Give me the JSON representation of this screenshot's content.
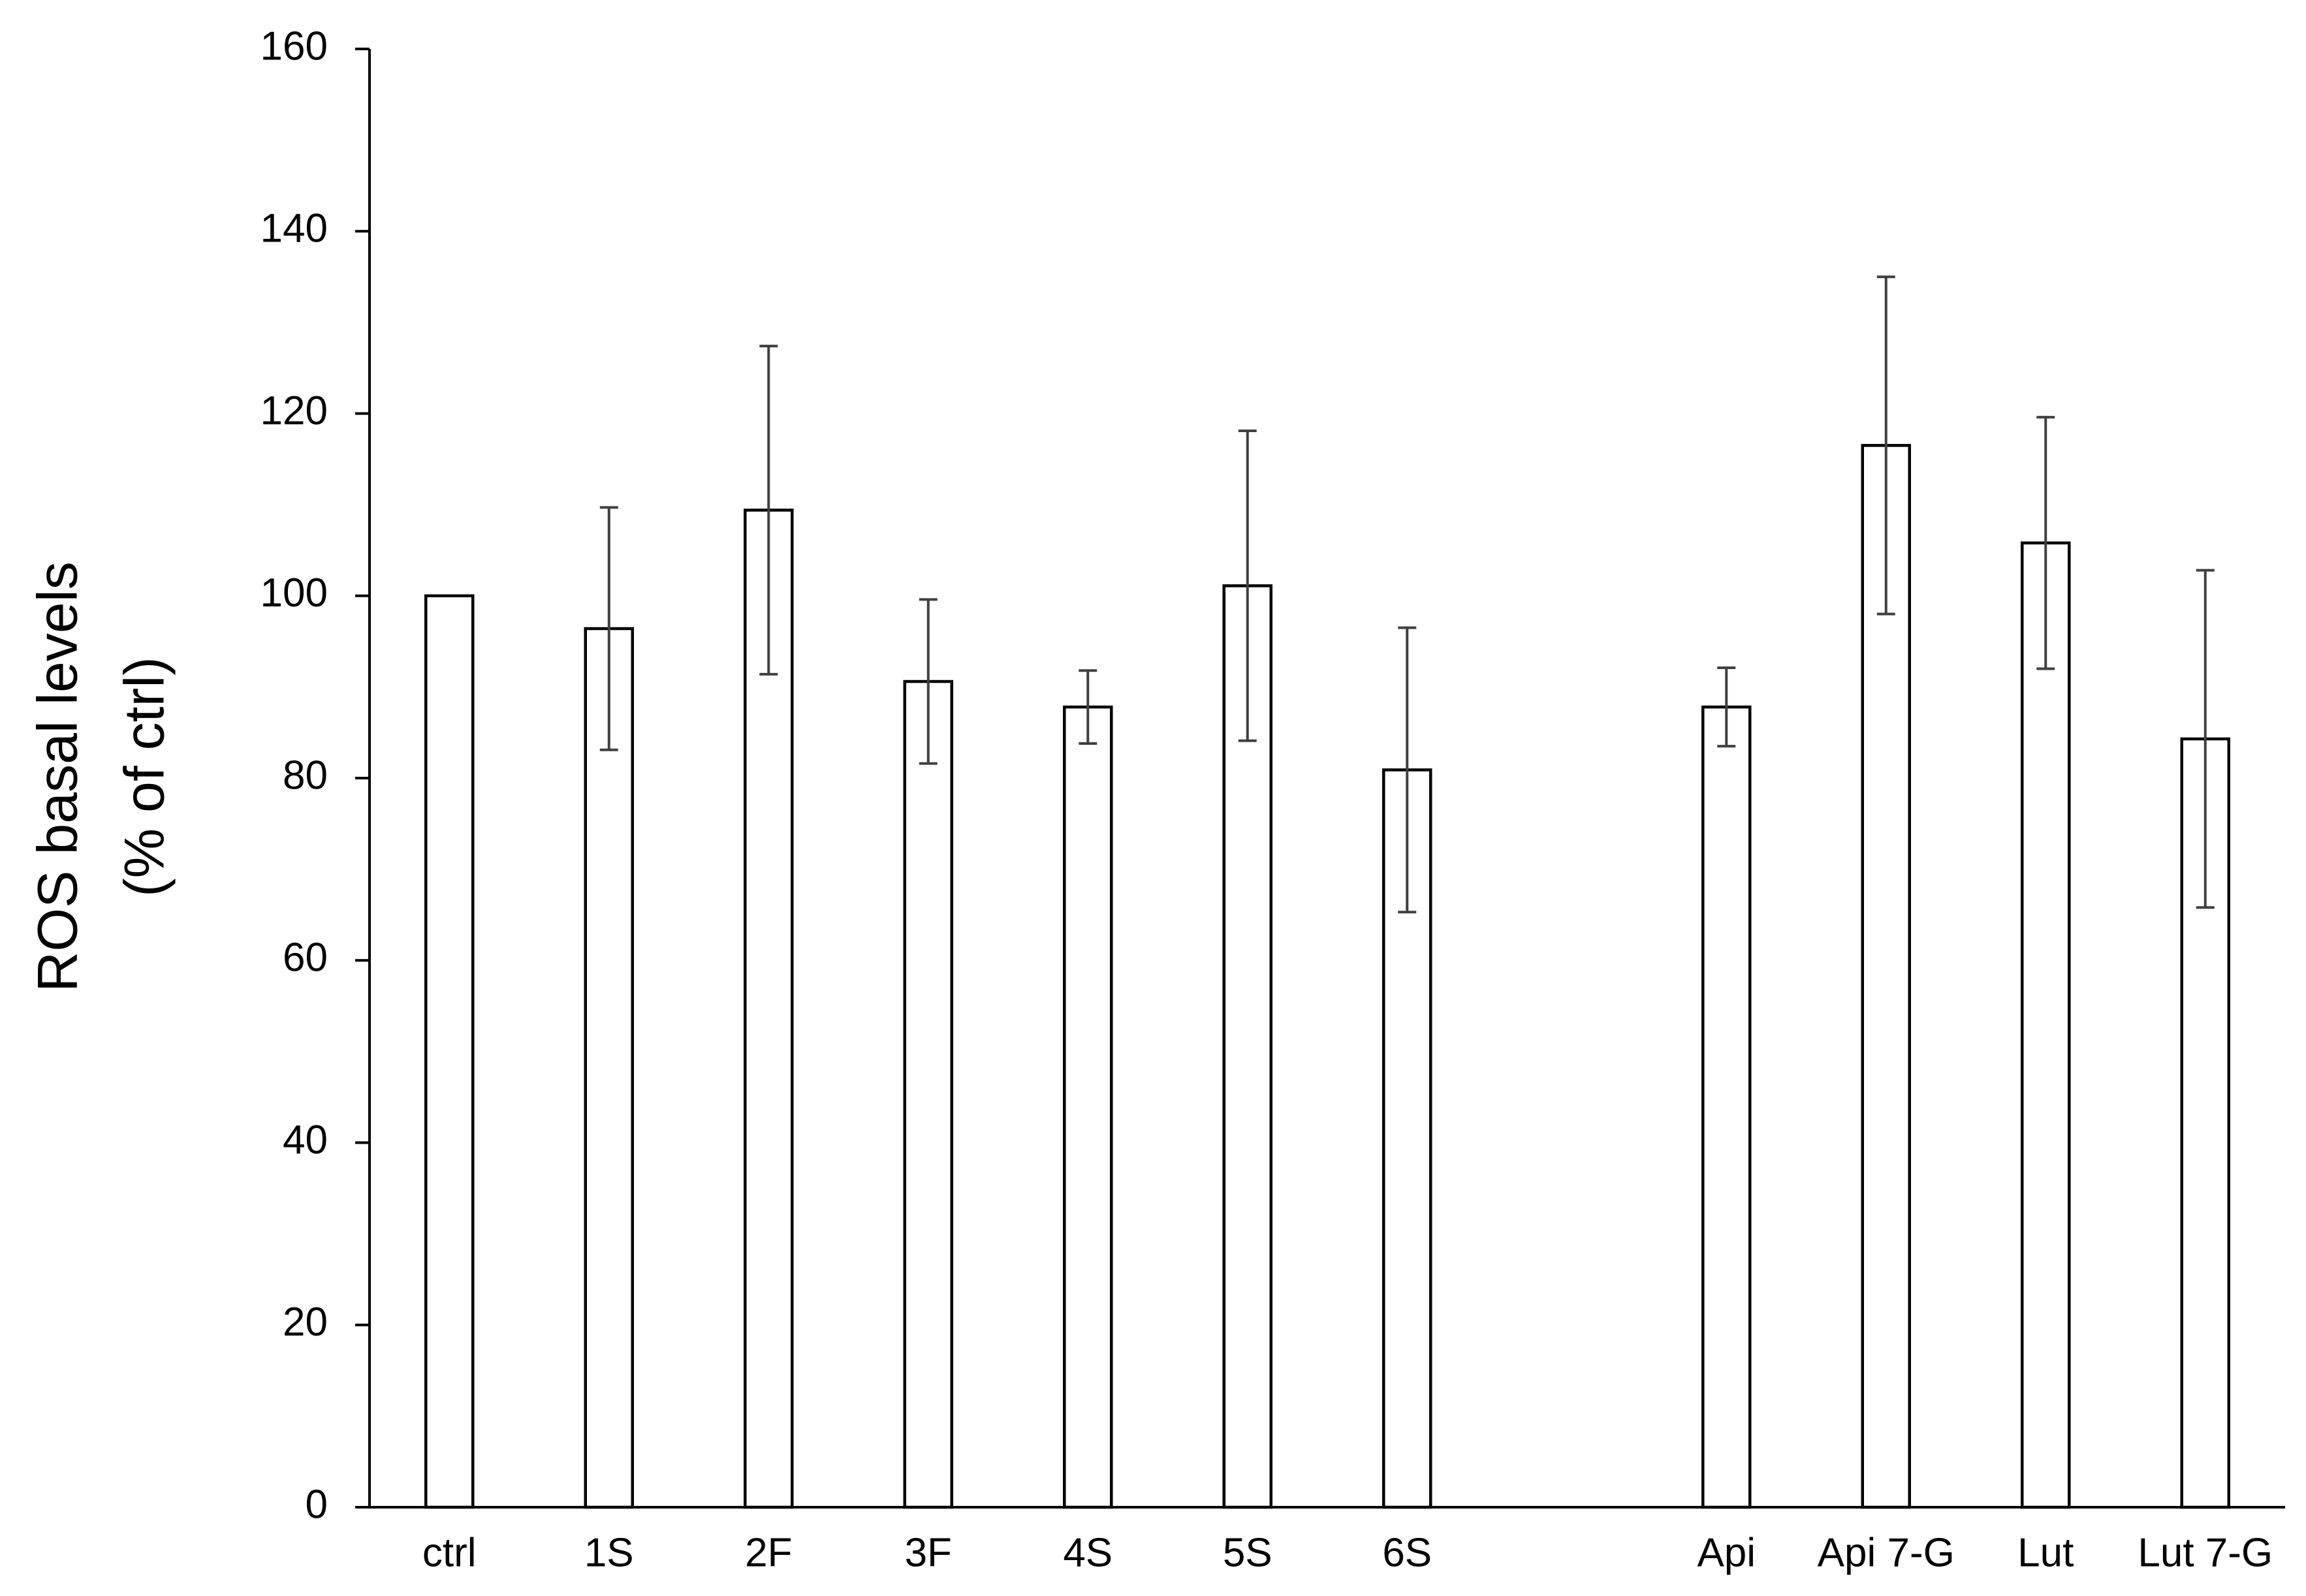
{
  "chart_data": {
    "type": "bar",
    "y_label": [
      "ROS basal levels",
      "(% of ctrl)"
    ],
    "categories": [
      "ctrl",
      "1S",
      "2F",
      "3F",
      "4S",
      "5S",
      "6S",
      null,
      "Api",
      "Api 7-G",
      "Lut",
      "Lut 7-G"
    ],
    "values": [
      100,
      96.4,
      109.4,
      90.6,
      87.8,
      101.1,
      80.9,
      null,
      87.8,
      116.5,
      105.8,
      84.3
    ],
    "errors": [
      null,
      13.3,
      18,
      9,
      4,
      17,
      15.6,
      null,
      4.3,
      18.5,
      13.8,
      18.5
    ],
    "color": "#ffffff",
    "edge_color": "#000000",
    "error_color": "#404040",
    "ylim": [
      0,
      160
    ],
    "yticks": [
      0,
      20,
      40,
      60,
      80,
      100,
      120,
      140,
      160
    ],
    "grid": false
  }
}
